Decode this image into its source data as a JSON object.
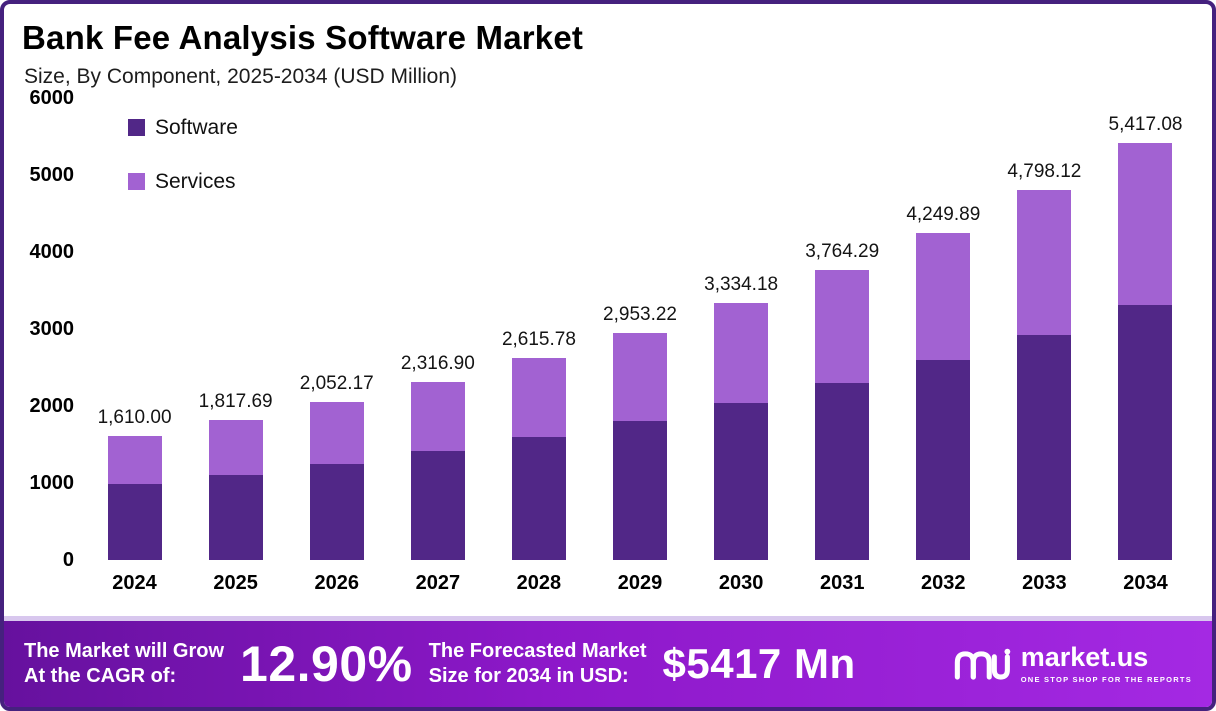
{
  "chart_data": {
    "type": "bar",
    "stacked": true,
    "title": "Bank Fee Analysis Software Market",
    "subtitle": "Size, By Component, 2025-2034 (USD Million)",
    "unit": "USD Million",
    "categories": [
      "2024",
      "2025",
      "2026",
      "2027",
      "2028",
      "2029",
      "2030",
      "2031",
      "2032",
      "2033",
      "2034"
    ],
    "series": [
      {
        "name": "Software",
        "color": "#512787",
        "values": [
          982.1,
          1108.8,
          1251.8,
          1413.3,
          1595.6,
          1801.5,
          2033.8,
          2296.2,
          2592.4,
          2926.9,
          3304.4
        ]
      },
      {
        "name": "Services",
        "color": "#A262D2",
        "values": [
          627.9,
          708.89,
          800.37,
          903.6,
          1020.18,
          1151.72,
          1300.38,
          1468.09,
          1657.49,
          1871.22,
          2112.68
        ]
      }
    ],
    "totals": [
      1610.0,
      1817.69,
      2052.17,
      2316.9,
      2615.78,
      2953.22,
      3334.18,
      3764.29,
      4249.89,
      4798.12,
      5417.08
    ],
    "totals_labels": [
      "1,610.00",
      "1,817.69",
      "2,052.17",
      "2,316.90",
      "2,615.78",
      "2,953.22",
      "3,334.18",
      "3,764.29",
      "4,249.89",
      "4,798.12",
      "5,417.08"
    ],
    "ylim": [
      0,
      6000
    ],
    "yticks": [
      0,
      1000,
      2000,
      3000,
      4000,
      5000,
      6000
    ],
    "grid": false,
    "legend_position": "top-left"
  },
  "footer": {
    "cagr_line1": "The Market will Grow",
    "cagr_line2": "At the CAGR of:",
    "cagr_value": "12.90%",
    "forecast_line1": "The Forecasted Market",
    "forecast_line2": "Size for 2034 in USD:",
    "forecast_value": "$5417 Mn",
    "brand": {
      "name": "market.us",
      "tagline": "ONE STOP SHOP FOR THE REPORTS"
    }
  },
  "colors": {
    "frame_border": "#45217e",
    "software": "#512787",
    "services": "#A262D2",
    "banner_gradient_start": "#66119e",
    "banner_gradient_end": "#a429e3"
  }
}
